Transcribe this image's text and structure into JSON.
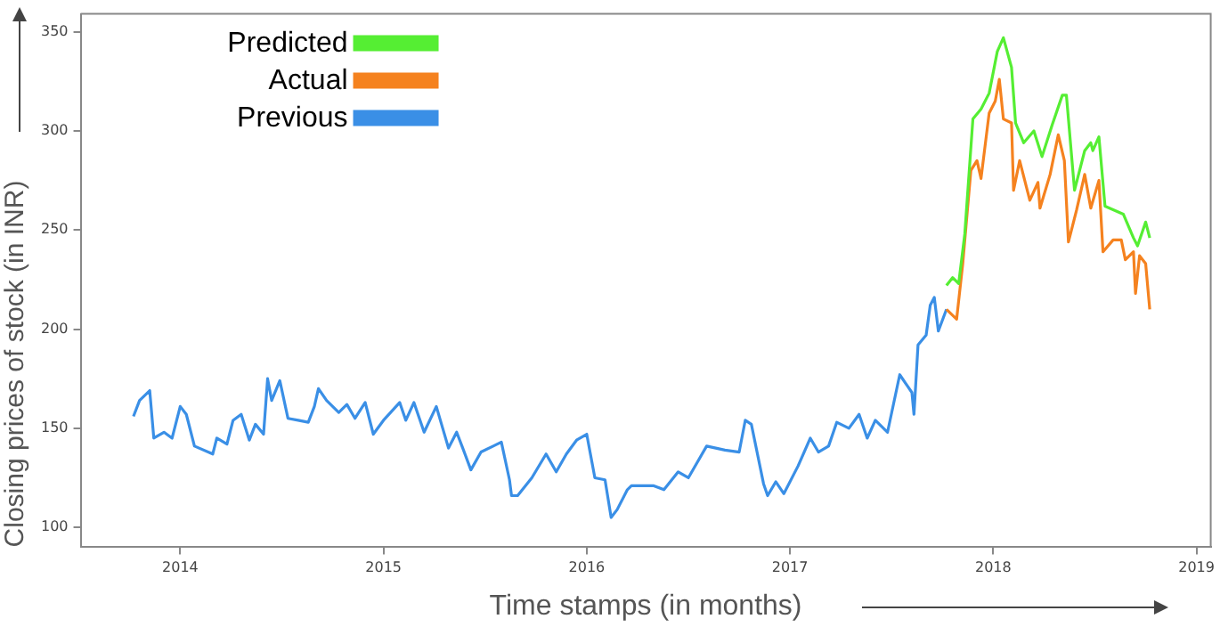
{
  "chart_data": {
    "type": "line",
    "xlabel": "Time stamps (in months)",
    "ylabel": "Closing prices of stock (in INR)",
    "xlim": [
      2013.51,
      2019.07
    ],
    "ylim": [
      90,
      359
    ],
    "xticks": [
      2014,
      2015,
      2016,
      2017,
      2018,
      2019
    ],
    "yticks": [
      100,
      150,
      200,
      250,
      300,
      350
    ],
    "grid": false,
    "legend": "top left",
    "marker": "none",
    "line_style": "solid",
    "series": [
      {
        "name": "Predicted",
        "color": "#55ee33",
        "x": [
          2017.77,
          2017.8,
          2017.83,
          2017.86,
          2017.9,
          2017.94,
          2017.98,
          2018.02,
          2018.05,
          2018.09,
          2018.11,
          2018.15,
          2018.2,
          2018.24,
          2018.29,
          2018.34,
          2018.36,
          2018.4,
          2018.45,
          2018.48,
          2018.49,
          2018.52,
          2018.55,
          2018.64,
          2018.69,
          2018.71,
          2018.75,
          2018.77
        ],
        "values": [
          222,
          226,
          223,
          248,
          306,
          311,
          319,
          340,
          347,
          332,
          304,
          294,
          300,
          287,
          303,
          318,
          318,
          270,
          290,
          294,
          290,
          297,
          262,
          258,
          246,
          242,
          254,
          246
        ]
      },
      {
        "name": "Actual",
        "color": "#f5821f",
        "x": [
          2017.77,
          2017.82,
          2017.85,
          2017.89,
          2017.92,
          2017.94,
          2017.98,
          2018.01,
          2018.03,
          2018.05,
          2018.09,
          2018.1,
          2018.13,
          2018.18,
          2018.22,
          2018.23,
          2018.28,
          2018.32,
          2018.35,
          2018.37,
          2018.41,
          2018.45,
          2018.48,
          2018.52,
          2018.54,
          2018.59,
          2018.63,
          2018.65,
          2018.69,
          2018.7,
          2018.72,
          2018.75,
          2018.77
        ],
        "values": [
          210,
          205,
          233,
          280,
          285,
          276,
          309,
          315,
          326,
          306,
          304,
          270,
          285,
          265,
          274,
          261,
          278,
          298,
          285,
          244,
          260,
          278,
          261,
          275,
          239,
          245,
          245,
          235,
          239,
          218,
          237,
          233,
          210
        ]
      },
      {
        "name": "Previous",
        "color": "#3a8fe6",
        "x": [
          2013.77,
          2013.8,
          2013.85,
          2013.87,
          2013.92,
          2013.96,
          2014.0,
          2014.03,
          2014.07,
          2014.16,
          2014.18,
          2014.23,
          2014.26,
          2014.3,
          2014.34,
          2014.37,
          2014.41,
          2014.43,
          2014.45,
          2014.49,
          2014.53,
          2014.58,
          2014.63,
          2014.66,
          2014.68,
          2014.72,
          2014.78,
          2014.82,
          2014.86,
          2014.91,
          2014.95,
          2015.0,
          2015.08,
          2015.11,
          2015.15,
          2015.2,
          2015.26,
          2015.32,
          2015.36,
          2015.39,
          2015.43,
          2015.48,
          2015.54,
          2015.58,
          2015.62,
          2015.63,
          2015.66,
          2015.73,
          2015.8,
          2015.85,
          2015.9,
          2015.95,
          2016.0,
          2016.04,
          2016.09,
          2016.12,
          2016.15,
          2016.2,
          2016.22,
          2016.33,
          2016.38,
          2016.45,
          2016.5,
          2016.59,
          2016.68,
          2016.75,
          2016.78,
          2016.81,
          2016.87,
          2016.89,
          2016.93,
          2016.97,
          2017.04,
          2017.1,
          2017.14,
          2017.19,
          2017.23,
          2017.29,
          2017.34,
          2017.38,
          2017.42,
          2017.48,
          2017.54,
          2017.6,
          2017.61,
          2017.63,
          2017.67,
          2017.69,
          2017.71,
          2017.73,
          2017.77
        ],
        "values": [
          156,
          164,
          169,
          145,
          148,
          145,
          161,
          157,
          141,
          137,
          145,
          142,
          154,
          157,
          144,
          152,
          147,
          175,
          164,
          174,
          155,
          154,
          153,
          161,
          170,
          164,
          158,
          162,
          155,
          163,
          147,
          154,
          163,
          154,
          163,
          148,
          161,
          140,
          148,
          140,
          129,
          138,
          141,
          143,
          124,
          116,
          116,
          125,
          137,
          128,
          137,
          144,
          147,
          125,
          124,
          105,
          109,
          119,
          121,
          121,
          119,
          128,
          125,
          141,
          139,
          138,
          154,
          152,
          122,
          116,
          123,
          117,
          131,
          145,
          138,
          141,
          153,
          150,
          157,
          145,
          154,
          148,
          177,
          168,
          157,
          192,
          197,
          212,
          216,
          199,
          210
        ]
      }
    ]
  }
}
